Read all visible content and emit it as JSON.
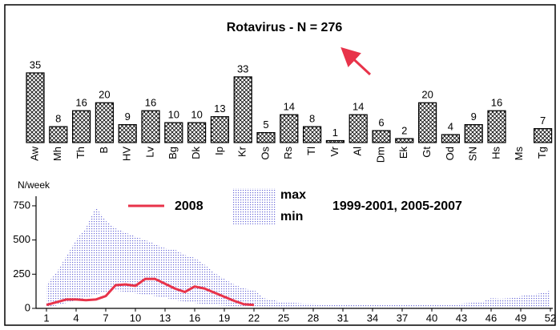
{
  "chart_data": [
    {
      "type": "bar",
      "title": "Rotavirus - N = 276",
      "categories": [
        "Aw",
        "Mh",
        "Th",
        "B",
        "HV",
        "Lv",
        "Bg",
        "Dk",
        "Ip",
        "Kr",
        "Os",
        "Rs",
        "Tl",
        "Vr",
        "Al",
        "Dm",
        "Ek",
        "Gt",
        "Od",
        "SN",
        "Hs",
        "Ms",
        "Tg"
      ],
      "values": [
        35,
        8,
        16,
        20,
        9,
        16,
        10,
        10,
        13,
        33,
        5,
        14,
        8,
        1,
        14,
        6,
        2,
        20,
        4,
        9,
        16,
        null,
        7
      ],
      "ylim": [
        0,
        35
      ]
    },
    {
      "type": "line",
      "ylabel": "N/week",
      "x": [
        1,
        2,
        3,
        4,
        5,
        6,
        7,
        8,
        9,
        10,
        11,
        12,
        13,
        14,
        15,
        16,
        17,
        18,
        19,
        20,
        21,
        22,
        23,
        24,
        25,
        26,
        27,
        28,
        29,
        30,
        31,
        32,
        33,
        34,
        35,
        36,
        37,
        38,
        39,
        40,
        41,
        42,
        43,
        44,
        45,
        46,
        47,
        48,
        49,
        50,
        51,
        52
      ],
      "xlim": [
        1,
        52
      ],
      "xticks": [
        1,
        4,
        7,
        10,
        13,
        16,
        19,
        22,
        25,
        28,
        31,
        34,
        37,
        40,
        43,
        46,
        49,
        52
      ],
      "ylim": [
        0,
        820
      ],
      "yticks": [
        0,
        250,
        500,
        750
      ],
      "series": [
        {
          "name": "2008",
          "color": "#e8334a",
          "values": [
            25,
            45,
            65,
            65,
            60,
            65,
            90,
            170,
            175,
            165,
            215,
            215,
            180,
            145,
            120,
            160,
            145,
            115,
            85,
            55,
            30,
            25,
            null,
            null,
            null,
            null,
            null,
            null,
            null,
            null,
            null,
            null,
            null,
            null,
            null,
            null,
            null,
            null,
            null,
            null,
            null,
            null,
            null,
            null,
            null,
            null,
            null,
            null,
            null,
            null,
            null,
            null
          ]
        }
      ],
      "band": {
        "name": "1999-2001, 2005-2007",
        "max_label": "max",
        "min_label": "min",
        "color": "#1a1acc",
        "max": [
          175,
          260,
          380,
          500,
          590,
          740,
          640,
          585,
          555,
          525,
          500,
          470,
          440,
          430,
          390,
          370,
          320,
          260,
          215,
          175,
          145,
          135,
          75,
          60,
          40,
          40,
          35,
          35,
          30,
          30,
          30,
          30,
          30,
          30,
          30,
          30,
          30,
          30,
          30,
          30,
          30,
          30,
          35,
          40,
          45,
          75,
          70,
          75,
          90,
          100,
          110,
          130
        ],
        "min": [
          10,
          20,
          40,
          60,
          80,
          100,
          120,
          130,
          120,
          110,
          100,
          90,
          80,
          60,
          50,
          40,
          30,
          25,
          20,
          15,
          10,
          10,
          5,
          5,
          5,
          5,
          5,
          5,
          5,
          5,
          5,
          5,
          5,
          5,
          5,
          5,
          5,
          5,
          5,
          5,
          5,
          5,
          5,
          5,
          5,
          5,
          5,
          5,
          5,
          5,
          5,
          5
        ]
      }
    }
  ]
}
